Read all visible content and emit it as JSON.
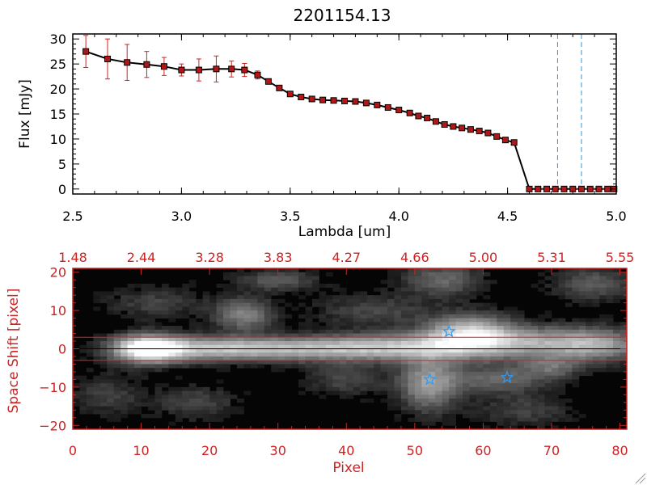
{
  "colors": {
    "axis_top": "#000000",
    "axis_bottom": "#cc2222",
    "marker": "#b01818",
    "errorbar": "#cc2222",
    "line": "#000000",
    "vline": "#3399dd",
    "star": "#3399ee",
    "trace_line": "#dd2222"
  },
  "chart_data": [
    {
      "type": "line",
      "title": "2201154.13",
      "xlabel": "Lambda [um]",
      "ylabel": "Flux [mJy]",
      "xlim": [
        2.5,
        5.0
      ],
      "ylim": [
        -1,
        31
      ],
      "xticks": [
        2.5,
        3.0,
        3.5,
        4.0,
        4.5,
        5.0
      ],
      "xtick_labels": [
        "2.5",
        "3.0",
        "3.5",
        "4.0",
        "4.5",
        "5.0"
      ],
      "yticks": [
        0,
        5,
        10,
        15,
        20,
        25,
        30
      ],
      "ytick_labels": [
        "0",
        "5",
        "10",
        "15",
        "20",
        "25",
        "30"
      ],
      "series": [
        {
          "x": [
            2.56,
            2.66,
            2.75,
            2.84,
            2.92,
            3.0,
            3.08,
            3.16,
            3.23,
            3.29,
            3.35,
            3.4,
            3.45,
            3.5,
            3.55,
            3.6,
            3.65,
            3.7,
            3.75,
            3.8,
            3.85,
            3.9,
            3.95,
            4.0,
            4.05,
            4.09,
            4.13,
            4.17,
            4.21,
            4.25,
            4.29,
            4.33,
            4.37,
            4.41,
            4.45,
            4.49,
            4.53,
            4.6,
            4.64,
            4.68,
            4.72,
            4.76,
            4.8,
            4.84,
            4.88,
            4.92,
            4.96,
            4.99
          ],
          "y": [
            27.5,
            26.0,
            25.3,
            24.9,
            24.5,
            23.8,
            23.8,
            24.0,
            24.0,
            23.8,
            22.8,
            21.5,
            20.2,
            19.0,
            18.4,
            18.0,
            17.8,
            17.7,
            17.6,
            17.5,
            17.2,
            16.8,
            16.3,
            15.8,
            15.2,
            14.6,
            14.2,
            13.5,
            12.9,
            12.5,
            12.2,
            11.9,
            11.6,
            11.2,
            10.5,
            9.8,
            9.3,
            0,
            0,
            0,
            0,
            0,
            0,
            0,
            0,
            0,
            0,
            0
          ],
          "err": [
            3.2,
            4.0,
            3.6,
            2.6,
            1.8,
            1.2,
            2.2,
            2.6,
            1.6,
            1.3,
            0.8,
            0.5,
            0.4,
            0.3,
            0.3,
            0.3,
            0.3,
            0.3,
            0.3,
            0.3,
            0.3,
            0.3,
            0.3,
            0.3,
            0.3,
            0.3,
            0.3,
            0.3,
            0.3,
            0.3,
            0.3,
            0.3,
            0.3,
            0.3,
            0.3,
            0.3,
            0.3,
            0.3,
            0.3,
            0.3,
            0.3,
            0.3,
            0.3,
            0.3,
            0.3,
            0.3,
            0.3,
            0.3
          ]
        }
      ],
      "vlines": [
        4.73,
        4.84
      ]
    },
    {
      "type": "heatmap",
      "xlabel": "Pixel",
      "ylabel": "Space Shift [pixel]",
      "xlim": [
        0,
        81
      ],
      "ylim": [
        -21,
        21
      ],
      "xticks": [
        0,
        10,
        20,
        30,
        40,
        50,
        60,
        70,
        80
      ],
      "xtick_labels": [
        "0",
        "10",
        "20",
        "30",
        "40",
        "50",
        "60",
        "70",
        "80"
      ],
      "yticks": [
        -20,
        -10,
        0,
        10,
        20
      ],
      "ytick_labels": [
        "−20",
        "−10",
        "0",
        "10",
        "20"
      ],
      "top_ticks": [
        0,
        10,
        20,
        30,
        40,
        50,
        60,
        70,
        80
      ],
      "top_tick_labels": [
        "1.48",
        "2.44",
        "3.28",
        "3.83",
        "4.27",
        "4.66",
        "5.00",
        "5.31",
        "5.55"
      ],
      "hlines": [
        3,
        -3
      ],
      "trace_y": 0,
      "stars": [
        {
          "x": 55,
          "y": 4.5
        },
        {
          "x": 52.2,
          "y": -8
        },
        {
          "x": 63.5,
          "y": -7.5
        }
      ],
      "blobs": [
        {
          "x": 11,
          "y": 0,
          "sx": 3.5,
          "sy": 2.5,
          "a": 1.0
        },
        {
          "x": 20,
          "y": 0,
          "sx": 8,
          "sy": 2.2,
          "a": 0.55
        },
        {
          "x": 35,
          "y": 0,
          "sx": 10,
          "sy": 2.2,
          "a": 0.5
        },
        {
          "x": 48,
          "y": 0.5,
          "sx": 8,
          "sy": 2.5,
          "a": 0.5
        },
        {
          "x": 58,
          "y": 3.5,
          "sx": 4.5,
          "sy": 3.5,
          "a": 0.8
        },
        {
          "x": 68,
          "y": 1.5,
          "sx": 7,
          "sy": 3,
          "a": 0.5
        },
        {
          "x": 77,
          "y": 1,
          "sx": 5,
          "sy": 3,
          "a": 0.45
        },
        {
          "x": 25,
          "y": 9,
          "sx": 3,
          "sy": 3,
          "a": 0.45
        },
        {
          "x": 30,
          "y": 18,
          "sx": 4,
          "sy": 2,
          "a": 0.3
        },
        {
          "x": 54,
          "y": 18,
          "sx": 4,
          "sy": 3,
          "a": 0.35
        },
        {
          "x": 52,
          "y": -9,
          "sx": 3,
          "sy": 5,
          "a": 0.55
        },
        {
          "x": 62,
          "y": -8,
          "sx": 5,
          "sy": 2.5,
          "a": 0.35
        },
        {
          "x": 70,
          "y": -5,
          "sx": 3,
          "sy": 2,
          "a": 0.3
        },
        {
          "x": 40,
          "y": -8,
          "sx": 4,
          "sy": 3,
          "a": 0.22
        },
        {
          "x": 12,
          "y": 12,
          "sx": 5,
          "sy": 3,
          "a": 0.2
        },
        {
          "x": 18,
          "y": -14,
          "sx": 4,
          "sy": 3,
          "a": 0.22
        },
        {
          "x": 5,
          "y": -12,
          "sx": 4,
          "sy": 4,
          "a": 0.18
        },
        {
          "x": 76,
          "y": 17,
          "sx": 4,
          "sy": 3,
          "a": 0.3
        },
        {
          "x": 44,
          "y": 10,
          "sx": 6,
          "sy": 3,
          "a": 0.22
        },
        {
          "x": 66,
          "y": -16,
          "sx": 5,
          "sy": 3,
          "a": 0.2
        }
      ]
    }
  ]
}
